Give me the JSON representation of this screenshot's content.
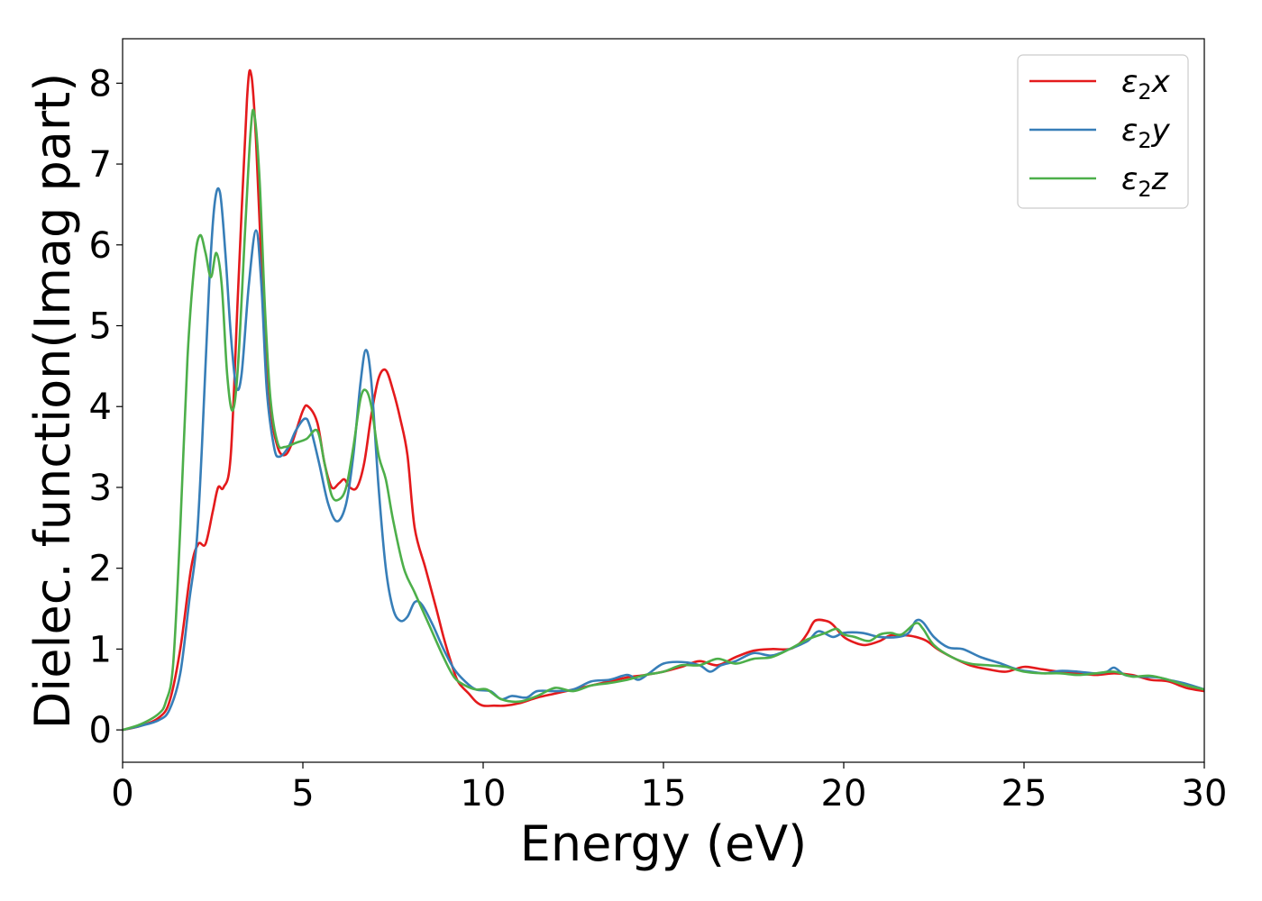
{
  "chart_data": {
    "type": "line",
    "xlabel": "Energy (eV)",
    "ylabel": "Dielec. function(Imag part)",
    "xlim": [
      0,
      30
    ],
    "ylim": [
      -0.4,
      8.55
    ],
    "xticks": [
      "0",
      "5",
      "10",
      "15",
      "20",
      "25",
      "30"
    ],
    "yticks": [
      "0",
      "1",
      "2",
      "3",
      "4",
      "5",
      "6",
      "7",
      "8"
    ],
    "grid": false,
    "legend_position": "top-right",
    "colors": {
      "ε2x": "#e41a1c",
      "ε2y": "#377eb8",
      "ε2z": "#4daf4a"
    },
    "series": [
      {
        "name": "ε2x",
        "sym": "ε",
        "sub": "2",
        "var": "x",
        "points": [
          [
            0,
            0
          ],
          [
            0.5,
            0.05
          ],
          [
            1,
            0.15
          ],
          [
            1.3,
            0.35
          ],
          [
            1.6,
            1.0
          ],
          [
            1.9,
            2.0
          ],
          [
            2.1,
            2.3
          ],
          [
            2.3,
            2.3
          ],
          [
            2.5,
            2.7
          ],
          [
            2.65,
            3.0
          ],
          [
            2.8,
            3.0
          ],
          [
            3.0,
            3.4
          ],
          [
            3.2,
            5.4
          ],
          [
            3.45,
            7.8
          ],
          [
            3.57,
            8.1
          ],
          [
            3.7,
            7.3
          ],
          [
            3.9,
            5.3
          ],
          [
            4.1,
            4.0
          ],
          [
            4.3,
            3.5
          ],
          [
            4.5,
            3.4
          ],
          [
            4.7,
            3.55
          ],
          [
            5.0,
            3.95
          ],
          [
            5.15,
            4.0
          ],
          [
            5.4,
            3.8
          ],
          [
            5.6,
            3.3
          ],
          [
            5.8,
            3.0
          ],
          [
            6.0,
            3.05
          ],
          [
            6.15,
            3.1
          ],
          [
            6.3,
            3.0
          ],
          [
            6.5,
            3.0
          ],
          [
            6.7,
            3.3
          ],
          [
            6.9,
            3.9
          ],
          [
            7.1,
            4.35
          ],
          [
            7.3,
            4.45
          ],
          [
            7.5,
            4.2
          ],
          [
            7.7,
            3.85
          ],
          [
            7.9,
            3.4
          ],
          [
            8.1,
            2.5
          ],
          [
            8.4,
            2.0
          ],
          [
            8.7,
            1.5
          ],
          [
            8.9,
            1.15
          ],
          [
            9.1,
            0.85
          ],
          [
            9.3,
            0.6
          ],
          [
            9.6,
            0.45
          ],
          [
            9.8,
            0.35
          ],
          [
            10.0,
            0.3
          ],
          [
            10.3,
            0.3
          ],
          [
            10.6,
            0.3
          ],
          [
            11.0,
            0.33
          ],
          [
            11.5,
            0.4
          ],
          [
            12.0,
            0.45
          ],
          [
            12.5,
            0.5
          ],
          [
            13.0,
            0.55
          ],
          [
            13.5,
            0.6
          ],
          [
            14.0,
            0.65
          ],
          [
            14.5,
            0.68
          ],
          [
            15.0,
            0.72
          ],
          [
            15.5,
            0.78
          ],
          [
            16.0,
            0.85
          ],
          [
            16.5,
            0.8
          ],
          [
            17.0,
            0.9
          ],
          [
            17.5,
            0.98
          ],
          [
            18.0,
            1.0
          ],
          [
            18.5,
            1.0
          ],
          [
            18.8,
            1.08
          ],
          [
            19.0,
            1.2
          ],
          [
            19.2,
            1.35
          ],
          [
            19.5,
            1.35
          ],
          [
            19.7,
            1.3
          ],
          [
            20.0,
            1.15
          ],
          [
            20.3,
            1.08
          ],
          [
            20.6,
            1.05
          ],
          [
            21.0,
            1.1
          ],
          [
            21.3,
            1.17
          ],
          [
            21.7,
            1.17
          ],
          [
            22.0,
            1.15
          ],
          [
            22.3,
            1.1
          ],
          [
            22.6,
            1.0
          ],
          [
            23.0,
            0.9
          ],
          [
            23.5,
            0.8
          ],
          [
            24.0,
            0.75
          ],
          [
            24.5,
            0.72
          ],
          [
            25.0,
            0.78
          ],
          [
            25.5,
            0.75
          ],
          [
            26.0,
            0.72
          ],
          [
            26.5,
            0.7
          ],
          [
            27.0,
            0.68
          ],
          [
            27.5,
            0.7
          ],
          [
            28.0,
            0.68
          ],
          [
            28.5,
            0.62
          ],
          [
            29.0,
            0.6
          ],
          [
            29.5,
            0.52
          ],
          [
            30.0,
            0.48
          ]
        ]
      },
      {
        "name": "ε2y",
        "sym": "ε",
        "sub": "2",
        "var": "y",
        "points": [
          [
            0,
            0
          ],
          [
            0.5,
            0.05
          ],
          [
            1,
            0.12
          ],
          [
            1.3,
            0.25
          ],
          [
            1.6,
            0.7
          ],
          [
            1.85,
            1.6
          ],
          [
            2.05,
            2.3
          ],
          [
            2.2,
            3.5
          ],
          [
            2.4,
            5.5
          ],
          [
            2.55,
            6.5
          ],
          [
            2.7,
            6.65
          ],
          [
            2.85,
            5.9
          ],
          [
            3.0,
            4.9
          ],
          [
            3.15,
            4.25
          ],
          [
            3.3,
            4.4
          ],
          [
            3.5,
            5.5
          ],
          [
            3.7,
            6.18
          ],
          [
            3.85,
            5.5
          ],
          [
            4.0,
            4.2
          ],
          [
            4.2,
            3.5
          ],
          [
            4.35,
            3.38
          ],
          [
            4.6,
            3.5
          ],
          [
            4.8,
            3.7
          ],
          [
            5.05,
            3.85
          ],
          [
            5.2,
            3.75
          ],
          [
            5.45,
            3.3
          ],
          [
            5.7,
            2.8
          ],
          [
            5.95,
            2.58
          ],
          [
            6.2,
            2.8
          ],
          [
            6.4,
            3.4
          ],
          [
            6.6,
            4.3
          ],
          [
            6.75,
            4.7
          ],
          [
            6.9,
            4.3
          ],
          [
            7.1,
            3.0
          ],
          [
            7.3,
            2.0
          ],
          [
            7.5,
            1.5
          ],
          [
            7.7,
            1.35
          ],
          [
            7.9,
            1.4
          ],
          [
            8.1,
            1.58
          ],
          [
            8.3,
            1.55
          ],
          [
            8.6,
            1.3
          ],
          [
            8.9,
            1.0
          ],
          [
            9.2,
            0.75
          ],
          [
            9.5,
            0.6
          ],
          [
            9.8,
            0.5
          ],
          [
            10.2,
            0.48
          ],
          [
            10.5,
            0.38
          ],
          [
            10.8,
            0.42
          ],
          [
            11.2,
            0.4
          ],
          [
            11.5,
            0.48
          ],
          [
            12.0,
            0.48
          ],
          [
            12.5,
            0.5
          ],
          [
            13.0,
            0.6
          ],
          [
            13.5,
            0.62
          ],
          [
            14.0,
            0.68
          ],
          [
            14.3,
            0.62
          ],
          [
            14.6,
            0.7
          ],
          [
            15.0,
            0.82
          ],
          [
            15.5,
            0.84
          ],
          [
            16.0,
            0.8
          ],
          [
            16.3,
            0.72
          ],
          [
            16.6,
            0.8
          ],
          [
            17.0,
            0.85
          ],
          [
            17.5,
            0.95
          ],
          [
            18.0,
            0.92
          ],
          [
            18.5,
            1.0
          ],
          [
            19.0,
            1.1
          ],
          [
            19.3,
            1.22
          ],
          [
            19.7,
            1.15
          ],
          [
            20.0,
            1.2
          ],
          [
            20.5,
            1.2
          ],
          [
            21.0,
            1.15
          ],
          [
            21.5,
            1.15
          ],
          [
            21.8,
            1.2
          ],
          [
            22.0,
            1.35
          ],
          [
            22.2,
            1.33
          ],
          [
            22.5,
            1.15
          ],
          [
            22.9,
            1.02
          ],
          [
            23.3,
            1.0
          ],
          [
            23.8,
            0.9
          ],
          [
            24.3,
            0.83
          ],
          [
            24.8,
            0.75
          ],
          [
            25.2,
            0.72
          ],
          [
            25.6,
            0.7
          ],
          [
            26.0,
            0.73
          ],
          [
            26.5,
            0.72
          ],
          [
            27.0,
            0.7
          ],
          [
            27.3,
            0.72
          ],
          [
            27.5,
            0.77
          ],
          [
            27.8,
            0.68
          ],
          [
            28.2,
            0.66
          ],
          [
            28.7,
            0.65
          ],
          [
            29.0,
            0.62
          ],
          [
            29.5,
            0.57
          ],
          [
            30.0,
            0.5
          ]
        ]
      },
      {
        "name": "ε2z",
        "sym": "ε",
        "sub": "2",
        "var": "z",
        "points": [
          [
            0,
            0
          ],
          [
            0.5,
            0.07
          ],
          [
            1.0,
            0.2
          ],
          [
            1.2,
            0.35
          ],
          [
            1.4,
            0.8
          ],
          [
            1.6,
            2.5
          ],
          [
            1.8,
            4.6
          ],
          [
            2.0,
            5.8
          ],
          [
            2.15,
            6.12
          ],
          [
            2.3,
            5.9
          ],
          [
            2.45,
            5.6
          ],
          [
            2.6,
            5.9
          ],
          [
            2.75,
            5.5
          ],
          [
            2.9,
            4.4
          ],
          [
            3.05,
            3.95
          ],
          [
            3.2,
            4.5
          ],
          [
            3.4,
            6.2
          ],
          [
            3.55,
            7.4
          ],
          [
            3.65,
            7.63
          ],
          [
            3.8,
            6.8
          ],
          [
            3.95,
            5.2
          ],
          [
            4.1,
            4.1
          ],
          [
            4.3,
            3.55
          ],
          [
            4.5,
            3.5
          ],
          [
            4.8,
            3.55
          ],
          [
            5.1,
            3.6
          ],
          [
            5.4,
            3.7
          ],
          [
            5.6,
            3.3
          ],
          [
            5.8,
            2.9
          ],
          [
            6.0,
            2.85
          ],
          [
            6.2,
            3.0
          ],
          [
            6.4,
            3.5
          ],
          [
            6.6,
            4.1
          ],
          [
            6.75,
            4.2
          ],
          [
            6.9,
            4.0
          ],
          [
            7.1,
            3.4
          ],
          [
            7.3,
            3.1
          ],
          [
            7.5,
            2.6
          ],
          [
            7.8,
            2.0
          ],
          [
            8.1,
            1.7
          ],
          [
            8.5,
            1.3
          ],
          [
            8.9,
            0.9
          ],
          [
            9.2,
            0.65
          ],
          [
            9.5,
            0.55
          ],
          [
            9.8,
            0.5
          ],
          [
            10.1,
            0.5
          ],
          [
            10.5,
            0.38
          ],
          [
            11.0,
            0.35
          ],
          [
            11.5,
            0.42
          ],
          [
            12.0,
            0.52
          ],
          [
            12.5,
            0.48
          ],
          [
            13.0,
            0.55
          ],
          [
            13.5,
            0.58
          ],
          [
            14.0,
            0.62
          ],
          [
            14.5,
            0.68
          ],
          [
            15.0,
            0.72
          ],
          [
            15.5,
            0.8
          ],
          [
            16.0,
            0.8
          ],
          [
            16.5,
            0.88
          ],
          [
            17.0,
            0.82
          ],
          [
            17.5,
            0.88
          ],
          [
            18.0,
            0.9
          ],
          [
            18.5,
            1.0
          ],
          [
            19.0,
            1.12
          ],
          [
            19.5,
            1.2
          ],
          [
            19.8,
            1.25
          ],
          [
            20.0,
            1.18
          ],
          [
            20.3,
            1.15
          ],
          [
            20.7,
            1.1
          ],
          [
            21.0,
            1.18
          ],
          [
            21.3,
            1.2
          ],
          [
            21.6,
            1.18
          ],
          [
            22.0,
            1.32
          ],
          [
            22.2,
            1.25
          ],
          [
            22.5,
            1.05
          ],
          [
            23.0,
            0.9
          ],
          [
            23.5,
            0.82
          ],
          [
            24.0,
            0.8
          ],
          [
            24.5,
            0.78
          ],
          [
            25.0,
            0.72
          ],
          [
            25.5,
            0.7
          ],
          [
            26.0,
            0.7
          ],
          [
            26.5,
            0.68
          ],
          [
            27.0,
            0.7
          ],
          [
            27.5,
            0.72
          ],
          [
            28.0,
            0.66
          ],
          [
            28.5,
            0.67
          ],
          [
            29.0,
            0.62
          ],
          [
            29.5,
            0.55
          ],
          [
            30.0,
            0.5
          ]
        ]
      }
    ]
  }
}
